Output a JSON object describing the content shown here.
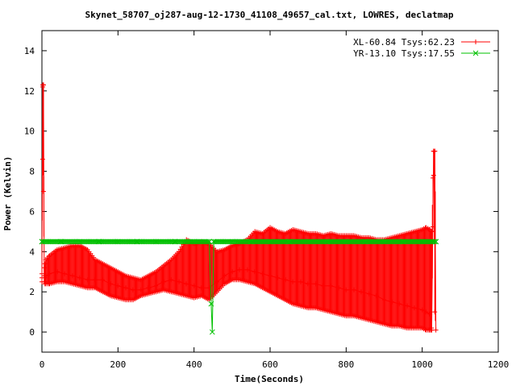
{
  "chart_data": {
    "type": "line",
    "title": "Skynet_58707_oj287-aug-12-1730_41108_49657_cal.txt, LOWRES, declatmap",
    "xlabel": "Time(Seconds)",
    "ylabel": "Power (Kelvin)",
    "xlim": [
      0,
      1200
    ],
    "ylim": [
      -1,
      15
    ],
    "xticks": [
      0,
      200,
      400,
      600,
      800,
      1000,
      1200
    ],
    "yticks": [
      0,
      2,
      4,
      6,
      8,
      10,
      12,
      14
    ],
    "grid": false,
    "legend_position": "top-right",
    "series": [
      {
        "name": "XL-60.84 Tsys:62.23",
        "color": "#ff0000",
        "marker": "plus",
        "x": [
          0,
          2,
          4,
          6,
          8,
          10,
          20,
          40,
          60,
          80,
          100,
          120,
          140,
          160,
          180,
          200,
          220,
          240,
          260,
          280,
          300,
          320,
          340,
          360,
          380,
          400,
          420,
          440,
          460,
          480,
          500,
          520,
          540,
          560,
          580,
          600,
          620,
          640,
          660,
          680,
          700,
          720,
          740,
          760,
          780,
          800,
          820,
          840,
          860,
          880,
          900,
          920,
          940,
          960,
          980,
          1000,
          1010,
          1020,
          1025,
          1030,
          1033,
          1036
        ],
        "y": [
          2.7,
          12.2,
          12.3,
          2.8,
          2.7,
          2.8,
          2.9,
          3.0,
          2.9,
          2.8,
          2.7,
          2.6,
          2.6,
          2.6,
          2.4,
          2.3,
          2.2,
          2.1,
          2.1,
          2.2,
          2.3,
          2.5,
          2.6,
          2.5,
          2.4,
          2.3,
          2.2,
          2.2,
          2.5,
          2.8,
          3.0,
          3.1,
          3.1,
          3.0,
          2.9,
          2.8,
          2.7,
          2.6,
          2.5,
          2.5,
          2.4,
          2.4,
          2.3,
          2.3,
          2.2,
          2.1,
          2.1,
          2.0,
          1.9,
          1.8,
          1.6,
          1.5,
          1.4,
          1.3,
          1.2,
          1.1,
          1.0,
          0.9,
          0.2,
          9.0,
          9.0,
          0.1
        ],
        "upper": [
          2.9,
          12.3,
          12.3,
          3.2,
          3.4,
          3.6,
          3.8,
          4.1,
          4.2,
          4.3,
          4.3,
          4.1,
          3.6,
          3.4,
          3.2,
          3.0,
          2.8,
          2.7,
          2.6,
          2.8,
          3.0,
          3.3,
          3.6,
          4.0,
          4.6,
          4.4,
          4.5,
          4.4,
          4.0,
          4.1,
          4.3,
          4.4,
          4.6,
          5.0,
          4.9,
          5.2,
          5.0,
          4.9,
          5.1,
          5.0,
          4.9,
          4.9,
          4.8,
          4.9,
          4.8,
          4.8,
          4.8,
          4.7,
          4.7,
          4.6,
          4.6,
          4.7,
          4.8,
          4.9,
          5.0,
          5.1,
          5.2,
          5.1,
          5.0,
          9.0,
          9.0,
          5.0
        ],
        "lower": [
          2.5,
          8.6,
          7.0,
          2.5,
          2.4,
          2.4,
          2.4,
          2.5,
          2.5,
          2.4,
          2.3,
          2.2,
          2.2,
          2.0,
          1.8,
          1.7,
          1.6,
          1.6,
          1.8,
          1.9,
          2.0,
          2.1,
          2.0,
          1.9,
          1.8,
          1.7,
          1.8,
          1.6,
          2.0,
          2.4,
          2.6,
          2.6,
          2.5,
          2.4,
          2.2,
          2.0,
          1.8,
          1.6,
          1.4,
          1.3,
          1.2,
          1.2,
          1.1,
          1.0,
          0.9,
          0.8,
          0.8,
          0.7,
          0.6,
          0.5,
          0.4,
          0.3,
          0.3,
          0.2,
          0.2,
          0.2,
          0.1,
          0.1,
          0.1,
          7.8,
          1.0,
          0.1
        ]
      },
      {
        "name": "YR-13.10 Tsys:17.55",
        "color": "#00c000",
        "marker": "x",
        "x": [
          0,
          50,
          100,
          150,
          200,
          250,
          300,
          350,
          400,
          440,
          445,
          448,
          452,
          500,
          550,
          600,
          650,
          700,
          750,
          800,
          850,
          900,
          950,
          1000,
          1036
        ],
        "y": [
          4.5,
          4.5,
          4.5,
          4.5,
          4.5,
          4.5,
          4.5,
          4.5,
          4.5,
          4.5,
          1.4,
          0.0,
          4.5,
          4.5,
          4.5,
          4.5,
          4.5,
          4.5,
          4.5,
          4.5,
          4.5,
          4.5,
          4.5,
          4.5,
          4.5
        ]
      }
    ]
  }
}
